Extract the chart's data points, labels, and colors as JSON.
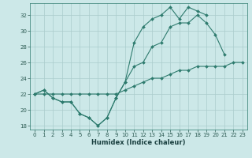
{
  "title": "",
  "xlabel": "Humidex (Indice chaleur)",
  "bg_color": "#cce8e8",
  "grid_color": "#aacccc",
  "line_color": "#2e7b6e",
  "xlim": [
    -0.5,
    23.5
  ],
  "ylim": [
    17.5,
    33.5
  ],
  "xticks": [
    0,
    1,
    2,
    3,
    4,
    5,
    6,
    7,
    8,
    9,
    10,
    11,
    12,
    13,
    14,
    15,
    16,
    17,
    18,
    19,
    20,
    21,
    22,
    23
  ],
  "yticks": [
    18,
    20,
    22,
    24,
    26,
    28,
    30,
    32
  ],
  "line1_x": [
    0,
    1,
    2,
    3,
    4,
    5,
    6,
    7,
    8,
    9,
    10,
    11,
    12,
    13,
    14,
    15,
    16,
    17,
    18,
    19,
    20,
    21
  ],
  "line1_y": [
    22,
    22.5,
    21.5,
    21,
    21,
    19.5,
    19,
    18,
    19,
    21.5,
    23.5,
    25.5,
    26,
    28,
    28.5,
    30.5,
    31,
    31,
    32,
    31,
    29.5,
    27
  ],
  "line2_x": [
    0,
    1,
    2,
    3,
    4,
    5,
    6,
    7,
    8,
    9,
    10,
    11,
    12,
    13,
    14,
    15,
    16,
    17,
    18,
    19
  ],
  "line2_y": [
    22,
    22.5,
    21.5,
    21,
    21,
    19.5,
    19,
    18,
    19,
    21.5,
    23.5,
    28.5,
    30.5,
    31.5,
    32,
    33,
    31.5,
    33,
    32.5,
    32
  ],
  "line3_x": [
    0,
    1,
    2,
    3,
    4,
    5,
    6,
    7,
    8,
    9,
    10,
    11,
    12,
    13,
    14,
    15,
    16,
    17,
    18,
    19,
    20,
    21,
    22,
    23
  ],
  "line3_y": [
    22,
    22,
    22,
    22,
    22,
    22,
    22,
    22,
    22,
    22,
    22.5,
    23,
    23.5,
    24,
    24,
    24.5,
    25,
    25,
    25.5,
    25.5,
    25.5,
    25.5,
    26,
    26
  ]
}
